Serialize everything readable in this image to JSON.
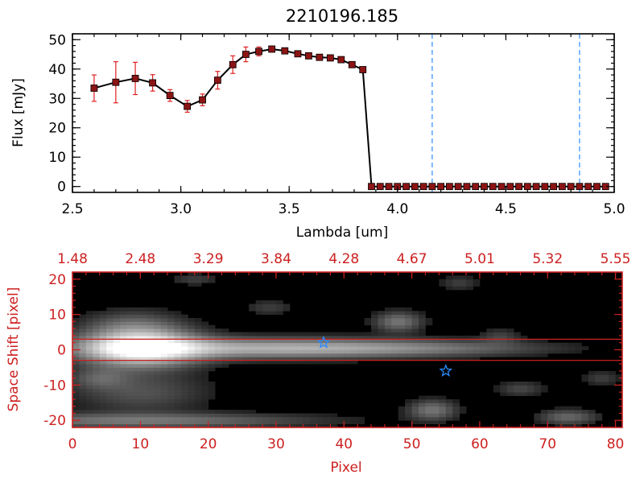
{
  "chart_data": [
    {
      "type": "line",
      "title": "2210196.185",
      "xlabel": "Lambda [um]",
      "ylabel": "Flux [mJy]",
      "xlim": [
        2.5,
        5.0
      ],
      "ylim": [
        -2,
        52
      ],
      "xticks": [
        "2.5",
        "3.0",
        "3.5",
        "4.0",
        "4.5",
        "5.0"
      ],
      "yticks": [
        "0",
        "10",
        "20",
        "30",
        "40",
        "50"
      ],
      "x": [
        2.6,
        2.7,
        2.79,
        2.87,
        2.95,
        3.03,
        3.1,
        3.17,
        3.24,
        3.3,
        3.36,
        3.42,
        3.48,
        3.54,
        3.59,
        3.64,
        3.69,
        3.74,
        3.79,
        3.84,
        3.88,
        3.92,
        3.96,
        4.0,
        4.04,
        4.08,
        4.12,
        4.16,
        4.2,
        4.24,
        4.28,
        4.32,
        4.36,
        4.4,
        4.44,
        4.48,
        4.52,
        4.56,
        4.6,
        4.64,
        4.68,
        4.72,
        4.76,
        4.8,
        4.84,
        4.88,
        4.92,
        4.96
      ],
      "y": [
        33.5,
        35.5,
        36.8,
        35.3,
        31.0,
        27.3,
        29.5,
        36.2,
        41.5,
        45.0,
        46.0,
        46.8,
        46.2,
        45.2,
        44.5,
        44.0,
        43.8,
        43.2,
        41.5,
        39.8,
        0,
        0,
        0,
        0,
        0,
        0,
        0,
        0,
        0,
        0,
        0,
        0,
        0,
        0,
        0,
        0,
        0,
        0,
        0,
        0,
        0,
        0,
        0,
        0,
        0,
        0,
        0,
        0
      ],
      "yerr": [
        4.5,
        7.0,
        5.5,
        2.8,
        2.0,
        2.0,
        2.0,
        3.0,
        3.0,
        2.5,
        1.5,
        1.0,
        0.8,
        0.6,
        0.5,
        0.5,
        0.5,
        0.5,
        0.5,
        0.6,
        0,
        0,
        0,
        0,
        0,
        0,
        0,
        0,
        0,
        0,
        0,
        0,
        0,
        0,
        0,
        0,
        0,
        0,
        0,
        0,
        0,
        0,
        0,
        0,
        0,
        0,
        0,
        0
      ],
      "vlines": [
        4.16,
        4.84
      ],
      "marker_color": "#8b1414",
      "errorbar_color": "#e02020",
      "vline_color": "#2a8cff"
    },
    {
      "type": "heatmap",
      "xlabel": "Pixel",
      "ylabel": "Space Shift [pixel]",
      "xlim": [
        0,
        81
      ],
      "ylim": [
        -22,
        22
      ],
      "xticks": [
        "0",
        "10",
        "20",
        "30",
        "40",
        "50",
        "60",
        "70",
        "80"
      ],
      "yticks": [
        "-20",
        "-10",
        "0",
        "10",
        "20"
      ],
      "top_ticks": [
        "1.48",
        "2.48",
        "3.29",
        "3.84",
        "4.28",
        "4.67",
        "5.01",
        "5.32",
        "5.55"
      ],
      "hlines": [
        3,
        -3
      ],
      "stars": [
        {
          "x": 37,
          "y": 2
        },
        {
          "x": 55,
          "y": -6
        }
      ],
      "blobs": [
        {
          "x": 10,
          "y": 0.5,
          "sx": 6,
          "sy": 3.5,
          "v": 1.0
        },
        {
          "x": 28,
          "y": 0.5,
          "sx": 16,
          "sy": 2.0,
          "v": 0.55
        },
        {
          "x": 52,
          "y": 0.5,
          "sx": 14,
          "sy": 1.6,
          "v": 0.25
        },
        {
          "x": 10,
          "y": -12,
          "sx": 7,
          "sy": 4,
          "v": 0.22
        },
        {
          "x": 9,
          "y": 7,
          "sx": 5,
          "sy": 3,
          "v": 0.25
        },
        {
          "x": 10,
          "y": -20,
          "sx": 18,
          "sy": 1.5,
          "v": 0.35
        },
        {
          "x": 48,
          "y": 8,
          "sx": 2.5,
          "sy": 2,
          "v": 0.35
        },
        {
          "x": 53,
          "y": -17,
          "sx": 2.5,
          "sy": 2,
          "v": 0.35
        },
        {
          "x": 73,
          "y": -19,
          "sx": 3,
          "sy": 1.5,
          "v": 0.3
        },
        {
          "x": 4,
          "y": -8,
          "sx": 3,
          "sy": 2,
          "v": 0.2
        },
        {
          "x": 29,
          "y": 12,
          "sx": 2.5,
          "sy": 1.5,
          "v": 0.15
        },
        {
          "x": 57,
          "y": 19,
          "sx": 2,
          "sy": 1.5,
          "v": 0.15
        },
        {
          "x": 66,
          "y": -11,
          "sx": 2.5,
          "sy": 1.5,
          "v": 0.18
        },
        {
          "x": 78,
          "y": -8,
          "sx": 2,
          "sy": 1.5,
          "v": 0.15
        },
        {
          "x": 18,
          "y": 20,
          "sx": 2.5,
          "sy": 1.2,
          "v": 0.15
        },
        {
          "x": 63,
          "y": 4,
          "sx": 2,
          "sy": 1.5,
          "v": 0.15
        }
      ],
      "hline_color": "#cc2020",
      "star_color": "#2a8cff"
    }
  ]
}
